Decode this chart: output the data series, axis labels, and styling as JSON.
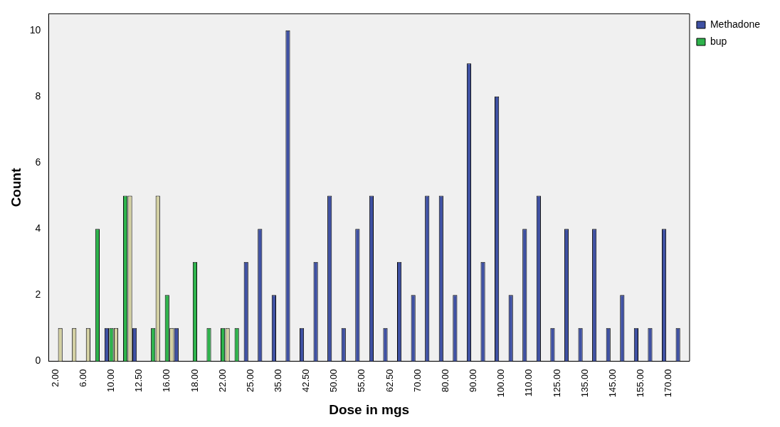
{
  "chart_data": {
    "type": "bar",
    "xlabel": "Dose in mgs",
    "ylabel": "Count",
    "categories": [
      "2.00",
      null,
      "6.00",
      null,
      "10.00",
      null,
      "12.50",
      null,
      "16.00",
      null,
      "18.00",
      null,
      "22.00",
      null,
      "25.00",
      null,
      "35.00",
      null,
      "42.50",
      null,
      "50.00",
      null,
      "55.00",
      null,
      "62.50",
      null,
      "70.00",
      null,
      "80.00",
      null,
      "90.00",
      null,
      "100.00",
      null,
      "110.00",
      null,
      "125.00",
      null,
      "135.00",
      null,
      "145.00",
      null,
      "155.00",
      null,
      "170.00",
      null
    ],
    "series": [
      {
        "name": "Methadone",
        "color": "#3f51a3",
        "values": [
          0,
          0,
          0,
          0,
          1,
          0,
          1,
          0,
          0,
          1,
          0,
          0,
          0,
          0,
          3,
          4,
          2,
          10,
          1,
          3,
          5,
          1,
          4,
          5,
          1,
          3,
          2,
          5,
          5,
          2,
          9,
          3,
          8,
          2,
          4,
          5,
          1,
          4,
          1,
          4,
          1,
          2,
          1,
          1,
          4,
          1
        ]
      },
      {
        "name": "bup",
        "color": "#2eb34c",
        "values": [
          0,
          0,
          0,
          4,
          1,
          5,
          0,
          1,
          2,
          0,
          3,
          1,
          1,
          1,
          0,
          0,
          0,
          0,
          0,
          0,
          0,
          0,
          0,
          0,
          0,
          0,
          0,
          0,
          0,
          0,
          0,
          0,
          0,
          0,
          0,
          0,
          0,
          0,
          0,
          0,
          0,
          0,
          0,
          0,
          0,
          0
        ]
      },
      {
        "color": "#d3d0a2",
        "values": [
          1,
          1,
          1,
          0,
          1,
          5,
          0,
          5,
          1,
          0,
          0,
          0,
          1,
          0,
          0,
          0,
          0,
          0,
          0,
          0,
          0,
          0,
          0,
          0,
          0,
          0,
          0,
          0,
          0,
          0,
          0,
          0,
          0,
          0,
          0,
          0,
          0,
          0,
          0,
          0,
          0,
          0,
          0,
          0,
          0,
          0
        ]
      }
    ],
    "ylim": [
      0,
      10.5
    ],
    "yticks": [
      0,
      2,
      4,
      6,
      8,
      10
    ],
    "grid": false,
    "legend": "top right"
  }
}
